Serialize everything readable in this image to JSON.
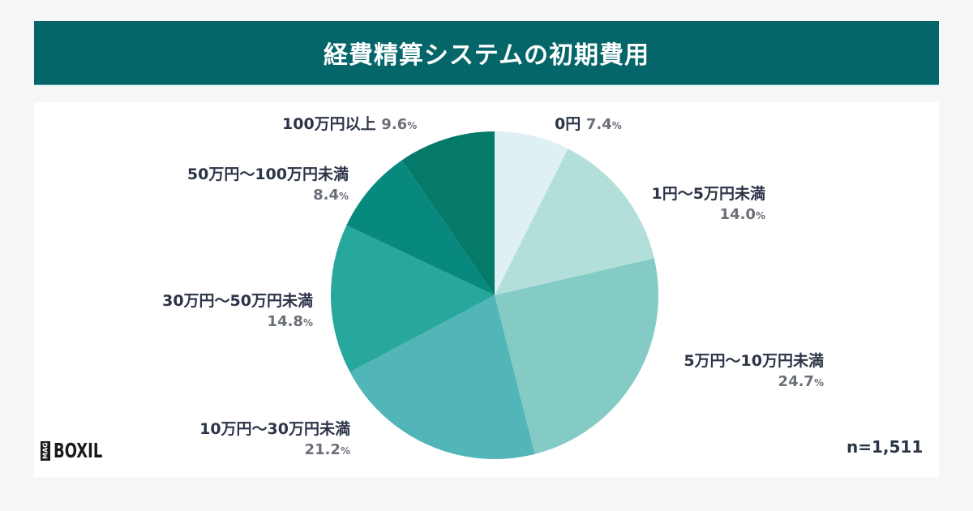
{
  "header": {
    "title": "経費精算システムの初期費用"
  },
  "sample": {
    "label": "n=1,511"
  },
  "logo": {
    "mag": "MAG",
    "brand": "BOXIL"
  },
  "colors": {
    "header_bg": "#05666a",
    "slice_0": "#dff0f2",
    "slice_1": "#b3dfdb",
    "slice_2": "#85cbc5",
    "slice_3": "#52b5b7",
    "slice_4": "#28a79d",
    "slice_5": "#078a7d",
    "slice_6": "#057a6a"
  },
  "labels": [
    {
      "name": "0円",
      "pct": "7.4",
      "unit": "%"
    },
    {
      "name": "1円〜5万円未満",
      "pct": "14.0",
      "unit": "%"
    },
    {
      "name": "5万円〜10万円未満",
      "pct": "24.7",
      "unit": "%"
    },
    {
      "name": "10万円〜30万円未満",
      "pct": "21.2",
      "unit": "%"
    },
    {
      "name": "30万円〜50万円未満",
      "pct": "14.8",
      "unit": "%"
    },
    {
      "name": "50万円〜100万円未満",
      "pct": "8.4",
      "unit": "%"
    },
    {
      "name": "100万円以上",
      "pct": "9.6",
      "unit": "%"
    }
  ],
  "chart_data": {
    "type": "pie",
    "title": "経費精算システムの初期費用",
    "categories": [
      "0円",
      "1円〜5万円未満",
      "5万円〜10万円未満",
      "10万円〜30万円未満",
      "30万円〜50万円未満",
      "50万円〜100万円未満",
      "100万円以上"
    ],
    "values": [
      7.4,
      14.0,
      24.7,
      21.2,
      14.8,
      8.4,
      9.6
    ],
    "unit": "%",
    "start_angle": "12 o'clock, clockwise",
    "sample_size": "n=1,511",
    "legend": "none (direct labels)"
  }
}
